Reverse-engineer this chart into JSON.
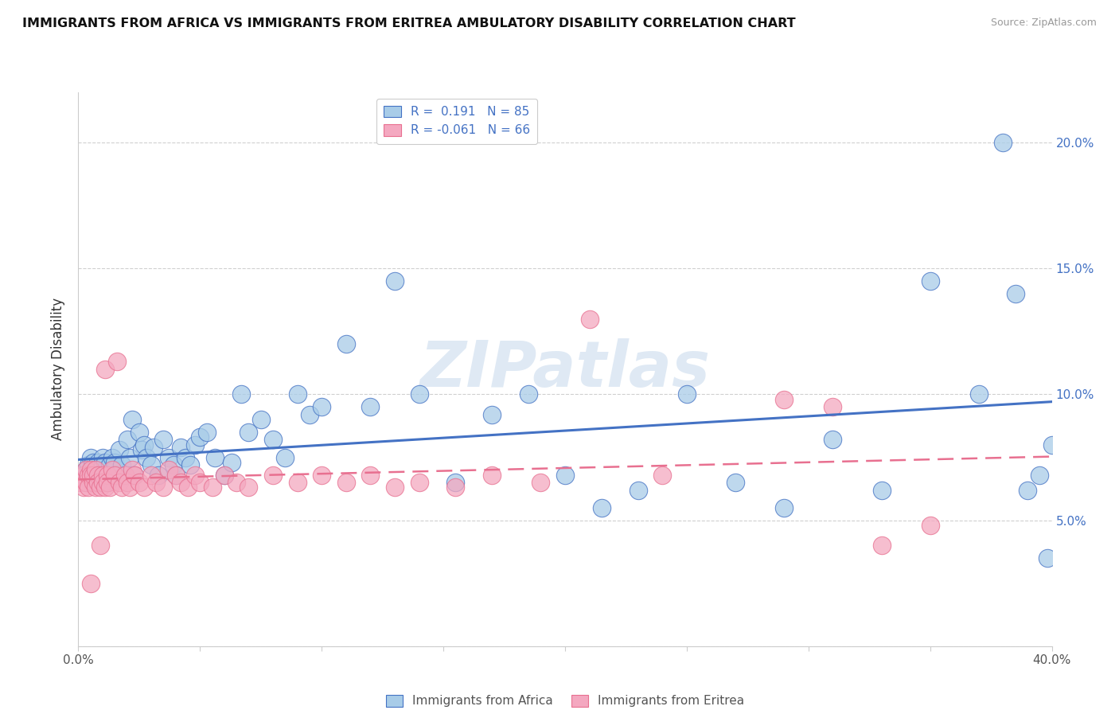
{
  "title": "IMMIGRANTS FROM AFRICA VS IMMIGRANTS FROM ERITREA AMBULATORY DISABILITY CORRELATION CHART",
  "source": "Source: ZipAtlas.com",
  "ylabel": "Ambulatory Disability",
  "xlim": [
    0.0,
    0.4
  ],
  "ylim": [
    0.0,
    0.22
  ],
  "xticks": [
    0.0,
    0.05,
    0.1,
    0.15,
    0.2,
    0.25,
    0.3,
    0.35,
    0.4
  ],
  "yticks": [
    0.0,
    0.05,
    0.1,
    0.15,
    0.2
  ],
  "africa_color": "#a8cce8",
  "eritrea_color": "#f4a8c0",
  "africa_R": 0.191,
  "africa_N": 85,
  "eritrea_R": -0.061,
  "eritrea_N": 66,
  "africa_line_color": "#4472c4",
  "eritrea_line_color": "#e87090",
  "watermark": "ZIPatlas",
  "grid_color": "#d0d0d0",
  "africa_x": [
    0.002,
    0.003,
    0.004,
    0.005,
    0.005,
    0.005,
    0.006,
    0.006,
    0.007,
    0.007,
    0.008,
    0.008,
    0.009,
    0.009,
    0.01,
    0.01,
    0.01,
    0.011,
    0.011,
    0.012,
    0.012,
    0.013,
    0.013,
    0.014,
    0.015,
    0.015,
    0.016,
    0.017,
    0.018,
    0.019,
    0.02,
    0.021,
    0.022,
    0.023,
    0.025,
    0.026,
    0.027,
    0.028,
    0.03,
    0.031,
    0.033,
    0.035,
    0.037,
    0.039,
    0.04,
    0.042,
    0.044,
    0.046,
    0.048,
    0.05,
    0.053,
    0.056,
    0.06,
    0.063,
    0.067,
    0.07,
    0.075,
    0.08,
    0.085,
    0.09,
    0.095,
    0.1,
    0.11,
    0.12,
    0.13,
    0.14,
    0.155,
    0.17,
    0.185,
    0.2,
    0.215,
    0.23,
    0.25,
    0.27,
    0.29,
    0.31,
    0.33,
    0.35,
    0.37,
    0.38,
    0.385,
    0.39,
    0.395,
    0.398,
    0.4
  ],
  "africa_y": [
    0.068,
    0.07,
    0.072,
    0.075,
    0.068,
    0.065,
    0.07,
    0.073,
    0.068,
    0.065,
    0.07,
    0.073,
    0.068,
    0.065,
    0.072,
    0.068,
    0.075,
    0.07,
    0.073,
    0.068,
    0.065,
    0.072,
    0.068,
    0.075,
    0.07,
    0.073,
    0.068,
    0.078,
    0.072,
    0.068,
    0.082,
    0.075,
    0.09,
    0.068,
    0.085,
    0.078,
    0.08,
    0.075,
    0.072,
    0.079,
    0.068,
    0.082,
    0.075,
    0.072,
    0.068,
    0.079,
    0.075,
    0.072,
    0.08,
    0.083,
    0.085,
    0.075,
    0.068,
    0.073,
    0.1,
    0.085,
    0.09,
    0.082,
    0.075,
    0.1,
    0.092,
    0.095,
    0.12,
    0.095,
    0.145,
    0.1,
    0.065,
    0.092,
    0.1,
    0.068,
    0.055,
    0.062,
    0.1,
    0.065,
    0.055,
    0.082,
    0.062,
    0.145,
    0.1,
    0.2,
    0.14,
    0.062,
    0.068,
    0.035,
    0.08
  ],
  "eritrea_x": [
    0.001,
    0.002,
    0.002,
    0.003,
    0.003,
    0.004,
    0.004,
    0.005,
    0.005,
    0.005,
    0.006,
    0.006,
    0.007,
    0.007,
    0.008,
    0.008,
    0.009,
    0.009,
    0.01,
    0.01,
    0.011,
    0.011,
    0.012,
    0.012,
    0.013,
    0.014,
    0.015,
    0.016,
    0.017,
    0.018,
    0.019,
    0.02,
    0.021,
    0.022,
    0.023,
    0.025,
    0.027,
    0.03,
    0.032,
    0.035,
    0.037,
    0.04,
    0.042,
    0.045,
    0.048,
    0.05,
    0.055,
    0.06,
    0.065,
    0.07,
    0.08,
    0.09,
    0.1,
    0.11,
    0.12,
    0.13,
    0.14,
    0.155,
    0.17,
    0.19,
    0.21,
    0.24,
    0.29,
    0.31,
    0.33,
    0.35
  ],
  "eritrea_y": [
    0.065,
    0.068,
    0.063,
    0.07,
    0.065,
    0.068,
    0.063,
    0.07,
    0.068,
    0.025,
    0.065,
    0.068,
    0.063,
    0.07,
    0.068,
    0.065,
    0.063,
    0.04,
    0.068,
    0.065,
    0.11,
    0.063,
    0.068,
    0.065,
    0.063,
    0.07,
    0.068,
    0.113,
    0.065,
    0.063,
    0.068,
    0.065,
    0.063,
    0.07,
    0.068,
    0.065,
    0.063,
    0.068,
    0.065,
    0.063,
    0.07,
    0.068,
    0.065,
    0.063,
    0.068,
    0.065,
    0.063,
    0.068,
    0.065,
    0.063,
    0.068,
    0.065,
    0.068,
    0.065,
    0.068,
    0.063,
    0.065,
    0.063,
    0.068,
    0.065,
    0.13,
    0.068,
    0.098,
    0.095,
    0.04,
    0.048
  ]
}
